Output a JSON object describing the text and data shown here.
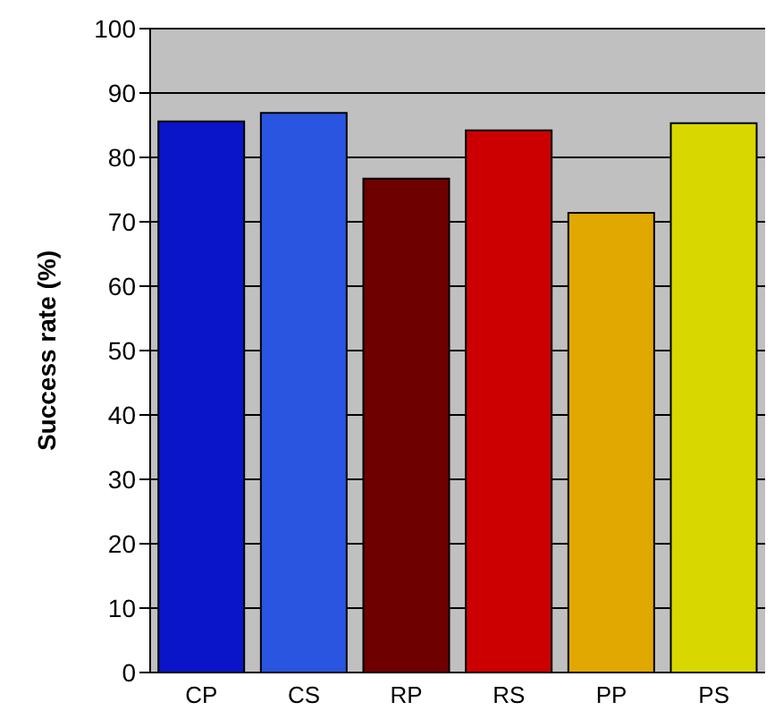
{
  "chart_data": {
    "type": "bar",
    "ylabel": "Success rate (%)",
    "categories": [
      "CP",
      "CS",
      "RP",
      "RS",
      "PP",
      "PS"
    ],
    "values": [
      85.6,
      86.9,
      76.7,
      84.2,
      71.4,
      85.3
    ],
    "colors": [
      "#0a14c8",
      "#2a55e0",
      "#6e0000",
      "#cc0000",
      "#e0a800",
      "#d8d800"
    ],
    "ylim": [
      0,
      100
    ],
    "yticks": [
      0,
      10,
      20,
      30,
      40,
      50,
      60,
      70,
      80,
      90,
      100
    ],
    "grid": "y",
    "legend": false
  }
}
